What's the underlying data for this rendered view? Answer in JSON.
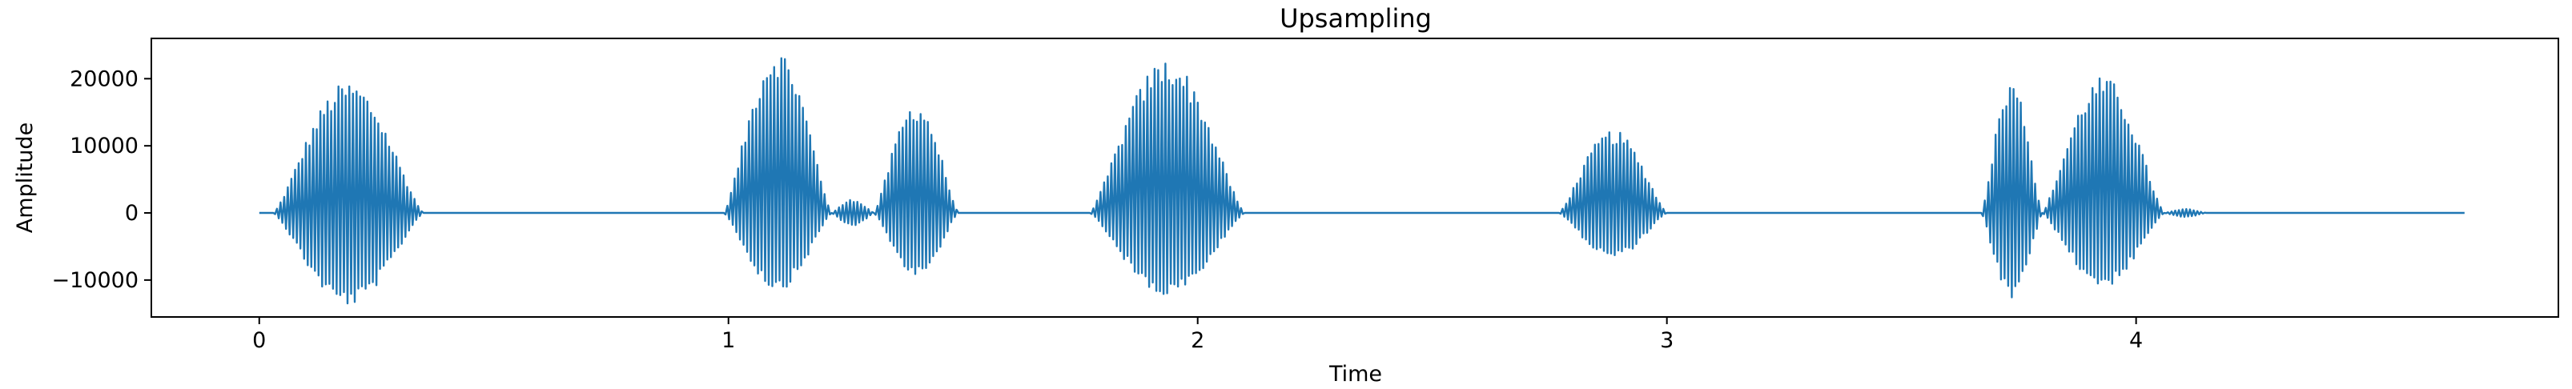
{
  "chart_data": {
    "type": "line",
    "title": "Upsampling",
    "xlabel": "Time",
    "ylabel": "Amplitude",
    "xlim": [
      -0.23,
      4.9
    ],
    "ylim": [
      -15500,
      26000
    ],
    "xticks": [
      {
        "value": 0,
        "label": "0"
      },
      {
        "value": 1,
        "label": "1"
      },
      {
        "value": 2,
        "label": "2"
      },
      {
        "value": 3,
        "label": "3"
      },
      {
        "value": 4,
        "label": "4"
      }
    ],
    "yticks": [
      {
        "value": -10000,
        "label": "−10000"
      },
      {
        "value": 0,
        "label": "0"
      },
      {
        "value": 10000,
        "label": "10000"
      },
      {
        "value": 20000,
        "label": "20000"
      }
    ],
    "grid": false,
    "legend": "none",
    "line_color": "#1f77b4",
    "series": [
      {
        "x_start": 0,
        "x_end": 4.7,
        "bursts": [
          {
            "start": 0.03,
            "end": 0.35,
            "max": 19500,
            "min": -13800
          },
          {
            "start": 0.99,
            "end": 1.22,
            "max": 24500,
            "min": -11500
          },
          {
            "start": 1.22,
            "end": 1.31,
            "max": 2000,
            "min": -2000
          },
          {
            "start": 1.31,
            "end": 1.49,
            "max": 16500,
            "min": -9500
          },
          {
            "start": 1.77,
            "end": 2.1,
            "max": 23000,
            "min": -12500
          },
          {
            "start": 2.77,
            "end": 3.0,
            "max": 12300,
            "min": -6700
          },
          {
            "start": 3.67,
            "end": 3.8,
            "max": 19800,
            "min": -13000
          },
          {
            "start": 3.8,
            "end": 4.06,
            "max": 20300,
            "min": -11000
          },
          {
            "start": 4.06,
            "end": 4.15,
            "max": 600,
            "min": -600
          }
        ]
      }
    ]
  }
}
